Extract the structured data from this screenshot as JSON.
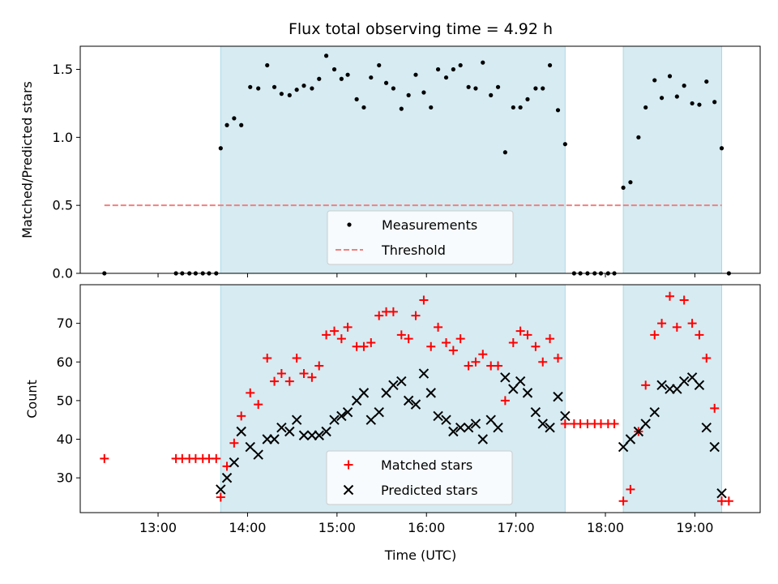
{
  "chart_data": [
    {
      "type": "scatter",
      "title": "Flux total observing time = 4.92 h",
      "xlabel": "",
      "ylabel": "Matched/Predicted stars",
      "xlim": [
        12.13,
        19.73
      ],
      "ylim": [
        0,
        1.67
      ],
      "yticks": [
        0.0,
        0.5,
        1.0,
        1.5
      ],
      "ytick_labels": [
        "0.0",
        "0.5",
        "1.0",
        "1.5"
      ],
      "shaded_intervals": [
        [
          13.7,
          17.55
        ],
        [
          18.2,
          19.3
        ]
      ],
      "shade_color": "#add8e6",
      "threshold": {
        "name": "Threshold",
        "value": 0.5,
        "x_range": [
          12.4,
          19.3
        ],
        "color": "#f08080"
      },
      "legend": {
        "position": "lower center"
      },
      "series": [
        {
          "name": "Measurements",
          "color": "#000000",
          "marker": "dot",
          "points": [
            [
              12.4,
              0.0
            ],
            [
              13.2,
              0.0
            ],
            [
              13.27,
              0.0
            ],
            [
              13.35,
              0.0
            ],
            [
              13.42,
              0.0
            ],
            [
              13.5,
              0.0
            ],
            [
              13.57,
              0.0
            ],
            [
              13.65,
              0.0
            ],
            [
              13.7,
              0.92
            ],
            [
              13.77,
              1.09
            ],
            [
              13.85,
              1.14
            ],
            [
              13.93,
              1.09
            ],
            [
              14.03,
              1.37
            ],
            [
              14.12,
              1.36
            ],
            [
              14.22,
              1.53
            ],
            [
              14.3,
              1.37
            ],
            [
              14.38,
              1.32
            ],
            [
              14.47,
              1.31
            ],
            [
              14.55,
              1.35
            ],
            [
              14.63,
              1.38
            ],
            [
              14.72,
              1.36
            ],
            [
              14.8,
              1.43
            ],
            [
              14.88,
              1.6
            ],
            [
              14.97,
              1.5
            ],
            [
              15.05,
              1.43
            ],
            [
              15.12,
              1.46
            ],
            [
              15.22,
              1.28
            ],
            [
              15.3,
              1.22
            ],
            [
              15.38,
              1.44
            ],
            [
              15.47,
              1.53
            ],
            [
              15.55,
              1.4
            ],
            [
              15.63,
              1.36
            ],
            [
              15.72,
              1.21
            ],
            [
              15.8,
              1.31
            ],
            [
              15.88,
              1.46
            ],
            [
              15.97,
              1.33
            ],
            [
              16.05,
              1.22
            ],
            [
              16.13,
              1.5
            ],
            [
              16.22,
              1.44
            ],
            [
              16.3,
              1.5
            ],
            [
              16.38,
              1.53
            ],
            [
              16.47,
              1.37
            ],
            [
              16.55,
              1.36
            ],
            [
              16.63,
              1.55
            ],
            [
              16.72,
              1.31
            ],
            [
              16.8,
              1.37
            ],
            [
              16.88,
              0.89
            ],
            [
              16.97,
              1.22
            ],
            [
              17.05,
              1.22
            ],
            [
              17.13,
              1.28
            ],
            [
              17.22,
              1.36
            ],
            [
              17.3,
              1.36
            ],
            [
              17.38,
              1.53
            ],
            [
              17.47,
              1.2
            ],
            [
              17.55,
              0.95
            ],
            [
              17.65,
              0.0
            ],
            [
              17.72,
              0.0
            ],
            [
              17.8,
              0.0
            ],
            [
              17.88,
              0.0
            ],
            [
              17.95,
              0.0
            ],
            [
              18.03,
              0.0
            ],
            [
              18.1,
              0.0
            ],
            [
              18.2,
              0.63
            ],
            [
              18.28,
              0.67
            ],
            [
              18.37,
              1.0
            ],
            [
              18.45,
              1.22
            ],
            [
              18.55,
              1.42
            ],
            [
              18.63,
              1.29
            ],
            [
              18.72,
              1.45
            ],
            [
              18.8,
              1.3
            ],
            [
              18.88,
              1.38
            ],
            [
              18.97,
              1.25
            ],
            [
              19.05,
              1.24
            ],
            [
              19.13,
              1.41
            ],
            [
              19.22,
              1.26
            ],
            [
              19.3,
              0.92
            ],
            [
              19.38,
              0.0
            ]
          ]
        }
      ]
    },
    {
      "type": "scatter",
      "title": "",
      "xlabel": "Time (UTC)",
      "ylabel": "Count",
      "xlim": [
        12.13,
        19.73
      ],
      "ylim": [
        21,
        80
      ],
      "yticks": [
        30,
        40,
        50,
        60,
        70
      ],
      "ytick_labels": [
        "30",
        "40",
        "50",
        "60",
        "70"
      ],
      "xticks": [
        13,
        14,
        15,
        16,
        17,
        18,
        19
      ],
      "xtick_labels": [
        "13:00",
        "14:00",
        "15:00",
        "16:00",
        "17:00",
        "18:00",
        "19:00"
      ],
      "shaded_intervals": [
        [
          13.7,
          17.55
        ],
        [
          18.2,
          19.3
        ]
      ],
      "shade_color": "#add8e6",
      "legend": {
        "position": "lower center"
      },
      "series": [
        {
          "name": "Matched stars",
          "color": "#ff0000",
          "marker": "plus",
          "points": [
            [
              12.4,
              35
            ],
            [
              13.2,
              35
            ],
            [
              13.27,
              35
            ],
            [
              13.35,
              35
            ],
            [
              13.42,
              35
            ],
            [
              13.5,
              35
            ],
            [
              13.57,
              35
            ],
            [
              13.65,
              35
            ],
            [
              13.7,
              25
            ],
            [
              13.77,
              33
            ],
            [
              13.85,
              39
            ],
            [
              13.93,
              46
            ],
            [
              14.03,
              52
            ],
            [
              14.12,
              49
            ],
            [
              14.22,
              61
            ],
            [
              14.3,
              55
            ],
            [
              14.38,
              57
            ],
            [
              14.47,
              55
            ],
            [
              14.55,
              61
            ],
            [
              14.63,
              57
            ],
            [
              14.72,
              56
            ],
            [
              14.8,
              59
            ],
            [
              14.88,
              67
            ],
            [
              14.97,
              68
            ],
            [
              15.05,
              66
            ],
            [
              15.12,
              69
            ],
            [
              15.22,
              64
            ],
            [
              15.3,
              64
            ],
            [
              15.38,
              65
            ],
            [
              15.47,
              72
            ],
            [
              15.55,
              73
            ],
            [
              15.63,
              73
            ],
            [
              15.72,
              67
            ],
            [
              15.8,
              66
            ],
            [
              15.88,
              72
            ],
            [
              15.97,
              76
            ],
            [
              16.05,
              64
            ],
            [
              16.13,
              69
            ],
            [
              16.22,
              65
            ],
            [
              16.3,
              63
            ],
            [
              16.38,
              66
            ],
            [
              16.47,
              59
            ],
            [
              16.55,
              60
            ],
            [
              16.63,
              62
            ],
            [
              16.72,
              59
            ],
            [
              16.8,
              59
            ],
            [
              16.88,
              50
            ],
            [
              16.97,
              65
            ],
            [
              17.05,
              68
            ],
            [
              17.13,
              67
            ],
            [
              17.22,
              64
            ],
            [
              17.3,
              60
            ],
            [
              17.38,
              66
            ],
            [
              17.47,
              61
            ],
            [
              17.55,
              44
            ],
            [
              17.65,
              44
            ],
            [
              17.72,
              44
            ],
            [
              17.8,
              44
            ],
            [
              17.88,
              44
            ],
            [
              17.95,
              44
            ],
            [
              18.03,
              44
            ],
            [
              18.1,
              44
            ],
            [
              18.2,
              24
            ],
            [
              18.28,
              27
            ],
            [
              18.37,
              42
            ],
            [
              18.45,
              54
            ],
            [
              18.55,
              67
            ],
            [
              18.63,
              70
            ],
            [
              18.72,
              77
            ],
            [
              18.8,
              69
            ],
            [
              18.88,
              76
            ],
            [
              18.97,
              70
            ],
            [
              19.05,
              67
            ],
            [
              19.13,
              61
            ],
            [
              19.22,
              48
            ],
            [
              19.3,
              24
            ],
            [
              19.38,
              24
            ]
          ]
        },
        {
          "name": "Predicted stars",
          "color": "#000000",
          "marker": "x",
          "points": [
            [
              13.7,
              27
            ],
            [
              13.77,
              30
            ],
            [
              13.85,
              34
            ],
            [
              13.93,
              42
            ],
            [
              14.03,
              38
            ],
            [
              14.12,
              36
            ],
            [
              14.22,
              40
            ],
            [
              14.3,
              40
            ],
            [
              14.38,
              43
            ],
            [
              14.47,
              42
            ],
            [
              14.55,
              45
            ],
            [
              14.63,
              41
            ],
            [
              14.72,
              41
            ],
            [
              14.8,
              41
            ],
            [
              14.88,
              42
            ],
            [
              14.97,
              45
            ],
            [
              15.05,
              46
            ],
            [
              15.12,
              47
            ],
            [
              15.22,
              50
            ],
            [
              15.3,
              52
            ],
            [
              15.38,
              45
            ],
            [
              15.47,
              47
            ],
            [
              15.55,
              52
            ],
            [
              15.63,
              54
            ],
            [
              15.72,
              55
            ],
            [
              15.8,
              50
            ],
            [
              15.88,
              49
            ],
            [
              15.97,
              57
            ],
            [
              16.05,
              52
            ],
            [
              16.13,
              46
            ],
            [
              16.22,
              45
            ],
            [
              16.3,
              42
            ],
            [
              16.38,
              43
            ],
            [
              16.47,
              43
            ],
            [
              16.55,
              44
            ],
            [
              16.63,
              40
            ],
            [
              16.72,
              45
            ],
            [
              16.8,
              43
            ],
            [
              16.88,
              56
            ],
            [
              16.97,
              53
            ],
            [
              17.05,
              55
            ],
            [
              17.13,
              52
            ],
            [
              17.22,
              47
            ],
            [
              17.3,
              44
            ],
            [
              17.38,
              43
            ],
            [
              17.47,
              51
            ],
            [
              17.55,
              46
            ],
            [
              18.2,
              38
            ],
            [
              18.28,
              40
            ],
            [
              18.37,
              42
            ],
            [
              18.45,
              44
            ],
            [
              18.55,
              47
            ],
            [
              18.63,
              54
            ],
            [
              18.72,
              53
            ],
            [
              18.8,
              53
            ],
            [
              18.88,
              55
            ],
            [
              18.97,
              56
            ],
            [
              19.05,
              54
            ],
            [
              19.13,
              43
            ],
            [
              19.22,
              38
            ],
            [
              19.3,
              26
            ]
          ]
        }
      ]
    }
  ]
}
